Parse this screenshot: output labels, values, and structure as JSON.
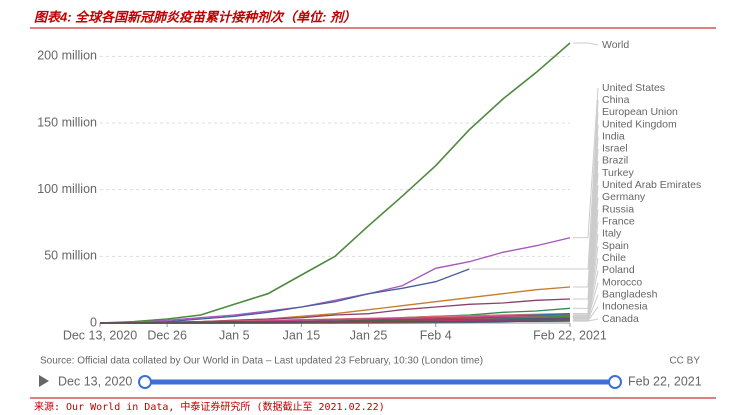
{
  "chart_data": {
    "type": "line",
    "title": "图表4: 全球各国新冠肺炎疫苗累计接种剂次（单位: 剂）",
    "source": "Source: Official data collated by Our World in Data – Last updated 23 February, 10:30 (London time)",
    "license": "CC BY",
    "timeline": {
      "start": "Dec 13, 2020",
      "end": "Feb 22, 2021"
    },
    "footnote": "来源: Our World in Data, 中泰证券研究所 (数据截止至 2021.02.22)",
    "categories": [
      "Dec 13, 2020",
      null,
      "Dec 26",
      null,
      "Jan 5",
      null,
      "Jan 15",
      null,
      "Jan 25",
      null,
      "Feb 4",
      null,
      null,
      null,
      "Feb 22, 2021"
    ],
    "ylim": [
      0,
      210
    ],
    "yticks": [
      0,
      {
        "value": 50,
        "label": "50 million"
      },
      {
        "value": 100,
        "label": "100 million"
      },
      {
        "value": 150,
        "label": "150 million"
      },
      {
        "value": 200,
        "label": "200 million"
      }
    ],
    "grid": true,
    "series": [
      {
        "name": "World",
        "color": "#4e8a3e",
        "values": [
          0,
          1,
          3,
          6,
          14,
          22,
          36,
          50,
          73,
          95,
          118,
          145,
          168,
          188,
          210
        ]
      },
      {
        "name": "United States",
        "color": "#a658b8",
        "values": [
          0,
          0.3,
          2,
          4,
          6,
          9,
          12,
          17,
          22,
          28,
          41,
          46,
          53,
          58,
          64
        ]
      },
      {
        "name": "China",
        "color": "#4a5e9f",
        "values": [
          0,
          0,
          1,
          3,
          5,
          8,
          12,
          16,
          22,
          26,
          31,
          40.5,
          null,
          null,
          null
        ]
      },
      {
        "name": "European Union",
        "color": "#c47d2c",
        "values": [
          0,
          0,
          0.5,
          1,
          2,
          3,
          5,
          7,
          10,
          13,
          16,
          19,
          22,
          25,
          27
        ]
      },
      {
        "name": "United Kingdom",
        "color": "#8e3f6d",
        "values": [
          0,
          0.1,
          0.5,
          1,
          2,
          3,
          4,
          6,
          7,
          10,
          12,
          14,
          15,
          17,
          18
        ]
      },
      {
        "name": "India",
        "color": "#2d8c4f",
        "values": [
          0,
          0,
          0,
          0,
          0,
          0,
          0.5,
          1,
          2,
          4,
          5,
          6,
          8,
          9,
          11
        ]
      },
      {
        "name": "Israel",
        "color": "#d16a6a",
        "values": [
          0,
          0,
          0.3,
          1,
          1.5,
          2,
          2.5,
          3,
          3.5,
          4,
          5,
          5.5,
          6,
          6.5,
          7
        ]
      },
      {
        "name": "Brazil",
        "color": "#a06a3a",
        "values": [
          0,
          0,
          0,
          0,
          0,
          0,
          0,
          0,
          1,
          2,
          3,
          4,
          5,
          5.5,
          6
        ]
      },
      {
        "name": "Turkey",
        "color": "#2f6fa8",
        "values": [
          0,
          0,
          0,
          0,
          0,
          0,
          0,
          0.5,
          1,
          2,
          3,
          4,
          5,
          6,
          7
        ]
      },
      {
        "name": "United Arab Emirates",
        "color": "#c4438a",
        "values": [
          0,
          0,
          0.3,
          0.6,
          1,
          1.5,
          2,
          2.5,
          3,
          3.5,
          4,
          4.5,
          5,
          5.2,
          5.5
        ]
      },
      {
        "name": "Germany",
        "color": "#4a8a3a",
        "values": [
          0,
          0,
          0,
          0.2,
          0.5,
          0.8,
          1,
          1.5,
          2,
          2.5,
          3,
          3.5,
          4,
          4.5,
          5
        ]
      },
      {
        "name": "Russia",
        "color": "#b03050",
        "values": [
          0,
          0,
          0.5,
          0.8,
          1,
          1,
          1,
          1.5,
          2,
          2.5,
          3,
          3.5,
          4,
          4,
          4
        ]
      },
      {
        "name": "France",
        "color": "#c45a3a",
        "values": [
          0,
          0,
          0,
          0,
          0.1,
          0.2,
          0.5,
          1,
          1.5,
          2,
          2.5,
          3,
          3.5,
          4,
          4
        ]
      },
      {
        "name": "Italy",
        "color": "#3060b0",
        "values": [
          0,
          0,
          0,
          0,
          0.2,
          0.5,
          1,
          1.3,
          1.6,
          2,
          2.3,
          2.6,
          3,
          3.3,
          3.6
        ]
      },
      {
        "name": "Spain",
        "color": "#2d7a2d",
        "values": [
          0,
          0,
          0,
          0,
          0.1,
          0.3,
          0.8,
          1.1,
          1.4,
          1.8,
          2,
          2.3,
          2.6,
          2.9,
          3.1
        ]
      },
      {
        "name": "Chile",
        "color": "#8b1a1a",
        "values": [
          0,
          0,
          0,
          0,
          0,
          0,
          0,
          0,
          0,
          0.1,
          0.5,
          1.5,
          2.2,
          2.7,
          3
        ]
      },
      {
        "name": "Poland",
        "color": "#c4306a",
        "values": [
          0,
          0,
          0,
          0,
          0.1,
          0.2,
          0.5,
          0.8,
          1,
          1.3,
          1.6,
          2,
          2.3,
          2.6,
          2.9
        ]
      },
      {
        "name": "Morocco",
        "color": "#7a3f8a",
        "values": [
          0,
          0,
          0,
          0,
          0,
          0,
          0,
          0,
          0.1,
          0.3,
          0.6,
          1.2,
          1.8,
          2.3,
          2.8
        ]
      },
      {
        "name": "Bangladesh",
        "color": "#1f7f9f",
        "values": [
          0,
          0,
          0,
          0,
          0,
          0,
          0,
          0,
          0,
          0,
          0.1,
          0.4,
          1,
          1.6,
          2
        ]
      },
      {
        "name": "Indonesia",
        "color": "#c04040",
        "values": [
          0,
          0,
          0,
          0,
          0,
          0,
          0.1,
          0.2,
          0.4,
          0.6,
          0.8,
          1,
          1.2,
          1.4,
          1.6
        ]
      },
      {
        "name": "Canada",
        "color": "#555555",
        "values": [
          0,
          0,
          0.1,
          0.1,
          0.2,
          0.3,
          0.5,
          0.7,
          0.8,
          0.9,
          1,
          1.1,
          1.2,
          1.3,
          1.4
        ]
      }
    ]
  }
}
